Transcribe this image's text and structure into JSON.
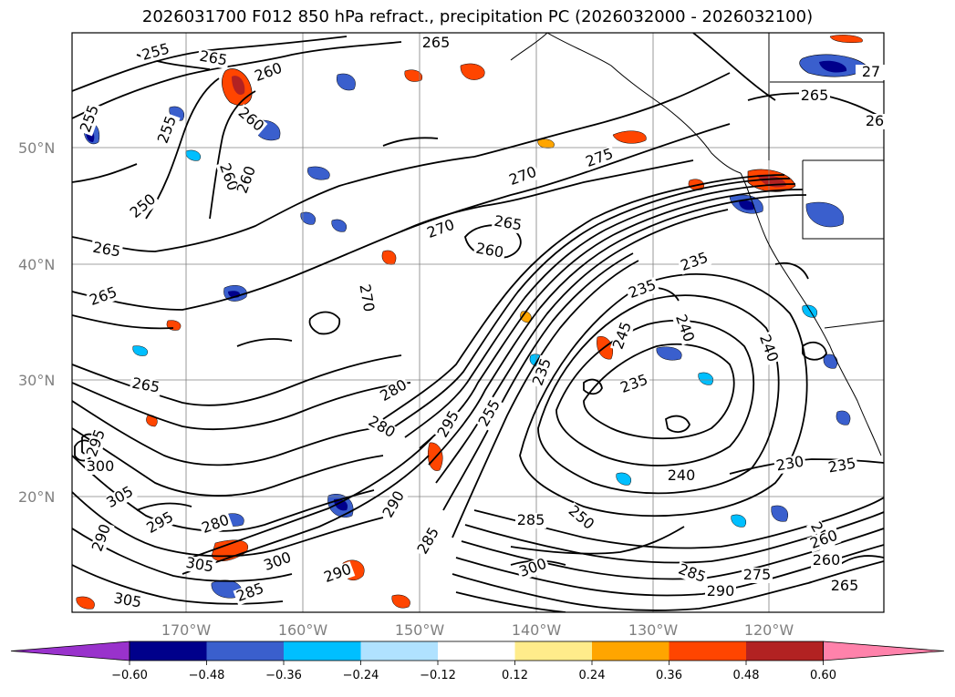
{
  "title": "2026031700 F012 850 hPa refract., precipitation PC (2026032000 - 2026032100)",
  "lat_labels": [
    "50°N",
    "40°N",
    "30°N",
    "20°N"
  ],
  "lon_labels": [
    "170°W",
    "160°W",
    "150°W",
    "140°W",
    "130°W",
    "120°W"
  ],
  "contour_labels": [
    {
      "text": "255",
      "region": "far north-west",
      "angle": -15
    },
    {
      "text": "265",
      "region": "north",
      "angle": 10
    },
    {
      "text": "265",
      "region": "north-central",
      "angle": 0
    },
    {
      "text": "260",
      "region": "north",
      "angle": -20
    },
    {
      "text": "255",
      "region": "west edge",
      "angle": -70
    },
    {
      "text": "255",
      "region": "north-west",
      "angle": -70
    },
    {
      "text": "260",
      "region": "north",
      "angle": 40
    },
    {
      "text": "260",
      "region": "north-west",
      "angle": 70
    },
    {
      "text": "260",
      "region": "north-west",
      "angle": -70
    },
    {
      "text": "250",
      "region": "north-west",
      "angle": -40
    },
    {
      "text": "265",
      "region": "west",
      "angle": 10
    },
    {
      "text": "265",
      "region": "west",
      "angle": -20
    },
    {
      "text": "270",
      "region": "central",
      "angle": -20
    },
    {
      "text": "275",
      "region": "north-central",
      "angle": -20
    },
    {
      "text": "270",
      "region": "central",
      "angle": -20
    },
    {
      "text": "265",
      "region": "central",
      "angle": 10
    },
    {
      "text": "260",
      "region": "central",
      "angle": 10
    },
    {
      "text": "270",
      "region": "central",
      "angle": 80
    },
    {
      "text": "265",
      "region": "north-east",
      "angle": 0
    },
    {
      "text": "235",
      "region": "east",
      "angle": -20
    },
    {
      "text": "235",
      "region": "east",
      "angle": -20
    },
    {
      "text": "245",
      "region": "east",
      "angle": -70
    },
    {
      "text": "240",
      "region": "east",
      "angle": 70
    },
    {
      "text": "240",
      "region": "east coast",
      "angle": 70
    },
    {
      "text": "235",
      "region": "central-east",
      "angle": -70
    },
    {
      "text": "235",
      "region": "east",
      "angle": -20
    },
    {
      "text": "265",
      "region": "west",
      "angle": 10
    },
    {
      "text": "280",
      "region": "central",
      "angle": -30
    },
    {
      "text": "280",
      "region": "central",
      "angle": 30
    },
    {
      "text": "295",
      "region": "central",
      "angle": -60
    },
    {
      "text": "255",
      "region": "central",
      "angle": -60
    },
    {
      "text": "295",
      "region": "west edge",
      "angle": -70
    },
    {
      "text": "300",
      "region": "west",
      "angle": 0
    },
    {
      "text": "305",
      "region": "west",
      "angle": -30
    },
    {
      "text": "295",
      "region": "west",
      "angle": -30
    },
    {
      "text": "280",
      "region": "west",
      "angle": -20
    },
    {
      "text": "290",
      "region": "west edge",
      "angle": -70
    },
    {
      "text": "240",
      "region": "east",
      "angle": 0
    },
    {
      "text": "230",
      "region": "east",
      "angle": -10
    },
    {
      "text": "235",
      "region": "east",
      "angle": -10
    },
    {
      "text": "305",
      "region": "south-west",
      "angle": 10
    },
    {
      "text": "300",
      "region": "south",
      "angle": -20
    },
    {
      "text": "290",
      "region": "south-central",
      "angle": -20
    },
    {
      "text": "290",
      "region": "central",
      "angle": -60
    },
    {
      "text": "285",
      "region": "central",
      "angle": -60
    },
    {
      "text": "285",
      "region": "south",
      "angle": 0
    },
    {
      "text": "250",
      "region": "south",
      "angle": 40
    },
    {
      "text": "300",
      "region": "south",
      "angle": -20
    },
    {
      "text": "285",
      "region": "south-east",
      "angle": 20
    },
    {
      "text": "275",
      "region": "south-east",
      "angle": 0
    },
    {
      "text": "290",
      "region": "south-east",
      "angle": 0
    },
    {
      "text": "260",
      "region": "south-east",
      "angle": 0
    },
    {
      "text": "250",
      "region": "south-east",
      "angle": 60
    },
    {
      "text": "260",
      "region": "south-east",
      "angle": -20
    },
    {
      "text": "265",
      "region": "south-east",
      "angle": 0
    },
    {
      "text": "305",
      "region": "south-west",
      "angle": 10
    },
    {
      "text": "285",
      "region": "south-west",
      "angle": -20
    },
    {
      "text": "27",
      "region": "north-east edge",
      "angle": 0
    },
    {
      "text": "26",
      "region": "north-east edge",
      "angle": 0
    }
  ],
  "colorbar": {
    "ticks": [
      "−0.60",
      "−0.48",
      "−0.36",
      "−0.24",
      "−0.12",
      "0.12",
      "0.24",
      "0.36",
      "0.48",
      "0.60"
    ],
    "colors": [
      "#9932cc",
      "#00008b",
      "#3a5fcd",
      "#00bfff",
      "#b0e2ff",
      "#ffffff",
      "#ffec8b",
      "#ffa500",
      "#ff4500",
      "#b22222",
      "#ff82ab"
    ]
  }
}
